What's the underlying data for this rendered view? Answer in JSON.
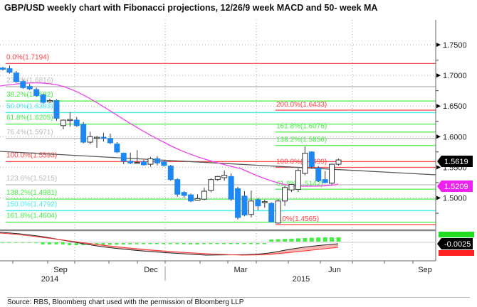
{
  "title": "GBP/USD weekly chart with Fibonacci projections, 12/26/9 week MACD and 50- week MA",
  "source": "Source: RBS, Bloomberg chart used with the permission of Bloomberg LLP",
  "chart_data": {
    "type": "candlestick",
    "title": "GBP/USD weekly chart with Fibonacci projections, 12/26/9 week MACD and 50- week MA",
    "yaxis": {
      "ticks": [
        "1.7500",
        "1.7000",
        "1.6500",
        "1.6000",
        "1.5500",
        "1.5000"
      ],
      "tick_values": [
        1.75,
        1.7,
        1.65,
        1.6,
        1.55,
        1.5
      ],
      "range": [
        1.445,
        1.765
      ]
    },
    "xaxis": {
      "month_labels": [
        "Sep",
        "Dec",
        "Mar",
        "Jun",
        "Sep"
      ],
      "year_labels": [
        "2014",
        "2015"
      ]
    },
    "last_price_label": "1.5619",
    "ma_label": "1.5209",
    "macd_label": "-0.0025",
    "colors": {
      "bear": "#1e88f0",
      "bull": "#ffffff",
      "ma": "#ee44ee",
      "trend": "#555555",
      "red": "#ff4444",
      "green": "#44ee44",
      "cyan": "#44eeee",
      "gray": "#bbbbbb"
    },
    "fib_left": [
      {
        "label": "0.0%(1.7194)",
        "value": 1.7194,
        "color": "red"
      },
      {
        "label": "23.6%(1.6816)",
        "value": 1.6816,
        "color": "gray"
      },
      {
        "label": "38.2%(1.6582)",
        "value": 1.6582,
        "color": "green"
      },
      {
        "label": "50.0%(1.6393)",
        "value": 1.6393,
        "color": "cyan"
      },
      {
        "label": "61.8%(1.6205)",
        "value": 1.6205,
        "color": "green"
      },
      {
        "label": "76.4%(1.5971)",
        "value": 1.5971,
        "color": "gray"
      },
      {
        "label": "100.0%(1.5593)",
        "value": 1.5593,
        "color": "red"
      },
      {
        "label": "123.6%(1.5215)",
        "value": 1.5215,
        "color": "gray"
      },
      {
        "label": "138.2%(1.4981)",
        "value": 1.4981,
        "color": "green"
      },
      {
        "label": "150.0%(1.4792)",
        "value": 1.4792,
        "color": "cyan"
      },
      {
        "label": "161.8%(1.4604)",
        "value": 1.4604,
        "color": "green"
      }
    ],
    "fib_right": [
      {
        "label": "200.0%(1.6433)",
        "value": 1.6433,
        "color": "red"
      },
      {
        "label": "161.8%(1.6076)",
        "value": 1.6076,
        "color": "green"
      },
      {
        "label": "138.2%(1.5856)",
        "value": 1.5856,
        "color": "green"
      },
      {
        "label": "100.0%(1.5499)",
        "value": 1.5499,
        "color": "red"
      },
      {
        "label": "61.8%(1.5142)",
        "value": 1.5142,
        "color": "green"
      },
      {
        "label": "0.0%(1.4565)",
        "value": 1.4565,
        "color": "red"
      }
    ],
    "candles": [
      [
        1.712,
        1.714,
        1.708,
        1.71
      ],
      [
        1.711,
        1.716,
        1.703,
        1.705
      ],
      [
        1.704,
        1.707,
        1.688,
        1.69
      ],
      [
        1.69,
        1.693,
        1.678,
        1.68
      ],
      [
        1.682,
        1.686,
        1.676,
        1.678
      ],
      [
        1.677,
        1.68,
        1.665,
        1.667
      ],
      [
        1.668,
        1.67,
        1.654,
        1.656
      ],
      [
        1.657,
        1.662,
        1.655,
        1.659
      ],
      [
        1.659,
        1.661,
        1.626,
        1.63
      ],
      [
        1.618,
        1.628,
        1.612,
        1.627
      ],
      [
        1.627,
        1.64,
        1.616,
        1.628
      ],
      [
        1.627,
        1.632,
        1.616,
        1.618
      ],
      [
        1.62,
        1.624,
        1.589,
        1.591
      ],
      [
        1.591,
        1.608,
        1.588,
        1.6
      ],
      [
        1.598,
        1.601,
        1.582,
        1.599
      ],
      [
        1.599,
        1.606,
        1.592,
        1.598
      ],
      [
        1.597,
        1.605,
        1.588,
        1.59
      ],
      [
        1.588,
        1.591,
        1.573,
        1.575
      ],
      [
        1.573,
        1.574,
        1.555,
        1.56
      ],
      [
        1.56,
        1.574,
        1.555,
        1.557
      ],
      [
        1.557,
        1.578,
        1.556,
        1.558
      ],
      [
        1.559,
        1.562,
        1.553,
        1.554
      ],
      [
        1.555,
        1.567,
        1.551,
        1.564
      ],
      [
        1.564,
        1.568,
        1.553,
        1.557
      ],
      [
        1.559,
        1.561,
        1.551,
        1.553
      ],
      [
        1.552,
        1.554,
        1.528,
        1.53
      ],
      [
        1.53,
        1.532,
        1.502,
        1.506
      ],
      [
        1.509,
        1.511,
        1.5,
        1.504
      ],
      [
        1.505,
        1.507,
        1.493,
        1.495
      ],
      [
        1.496,
        1.506,
        1.495,
        1.499
      ],
      [
        1.498,
        1.517,
        1.496,
        1.511
      ],
      [
        1.512,
        1.532,
        1.509,
        1.53
      ],
      [
        1.53,
        1.536,
        1.528,
        1.535
      ],
      [
        1.533,
        1.545,
        1.528,
        1.537
      ],
      [
        1.535,
        1.54,
        1.495,
        1.498
      ],
      [
        1.515,
        1.518,
        1.465,
        1.468
      ],
      [
        1.503,
        1.511,
        1.47,
        1.472
      ],
      [
        1.473,
        1.512,
        1.468,
        1.495
      ],
      [
        1.497,
        1.5,
        1.48,
        1.487
      ],
      [
        1.493,
        1.497,
        1.484,
        1.494
      ],
      [
        1.491,
        1.493,
        1.46,
        1.461
      ],
      [
        1.459,
        1.498,
        1.458,
        1.495
      ],
      [
        1.495,
        1.52,
        1.487,
        1.517
      ],
      [
        1.513,
        1.523,
        1.51,
        1.522
      ],
      [
        1.514,
        1.548,
        1.51,
        1.545
      ],
      [
        1.54,
        1.584,
        1.537,
        1.573
      ],
      [
        1.575,
        1.576,
        1.548,
        1.551
      ],
      [
        1.549,
        1.552,
        1.526,
        1.528
      ],
      [
        1.53,
        1.544,
        1.524,
        1.525
      ],
      [
        1.524,
        1.556,
        1.522,
        1.555
      ],
      [
        1.555,
        1.564,
        1.553,
        1.562
      ]
    ]
  }
}
